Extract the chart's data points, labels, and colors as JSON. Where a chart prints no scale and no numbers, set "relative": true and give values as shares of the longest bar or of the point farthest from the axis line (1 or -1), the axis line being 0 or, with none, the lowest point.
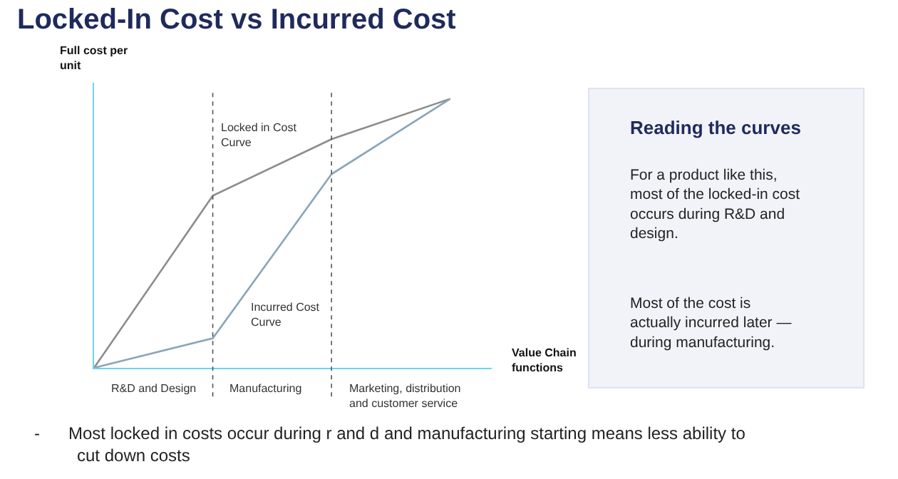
{
  "chart_data": {
    "type": "line",
    "title": "Locked-In Cost vs Incurred Cost",
    "xlabel": "Value Chain functions",
    "ylabel": "Full cost per unit",
    "relative": true,
    "categories": [
      null,
      null,
      null,
      null
    ],
    "series": [
      {
        "name": "Locked in Cost Curve",
        "color": "#8c8c8c",
        "values": [
          0,
          0.64,
          0.85,
          1
        ]
      },
      {
        "name": "Incurred Cost Curve",
        "color": "#8aa6b8",
        "values": [
          0,
          0.11,
          0.72,
          1
        ]
      }
    ],
    "annotations": [
      "R&D and Design",
      "Manufacturing",
      "Marketing, distribution and customer service",
      "Reading the curves",
      "For a product like this, most of the locked-in cost occurs during R&D and design.",
      "Most of the cost is actually incurred later — during manufacturing.",
      "-      Most locked in costs occur during r and d and manufacturing starting means less ability to cut down costs"
    ],
    "legend": false,
    "marker": "none",
    "line_style": "solid"
  }
}
